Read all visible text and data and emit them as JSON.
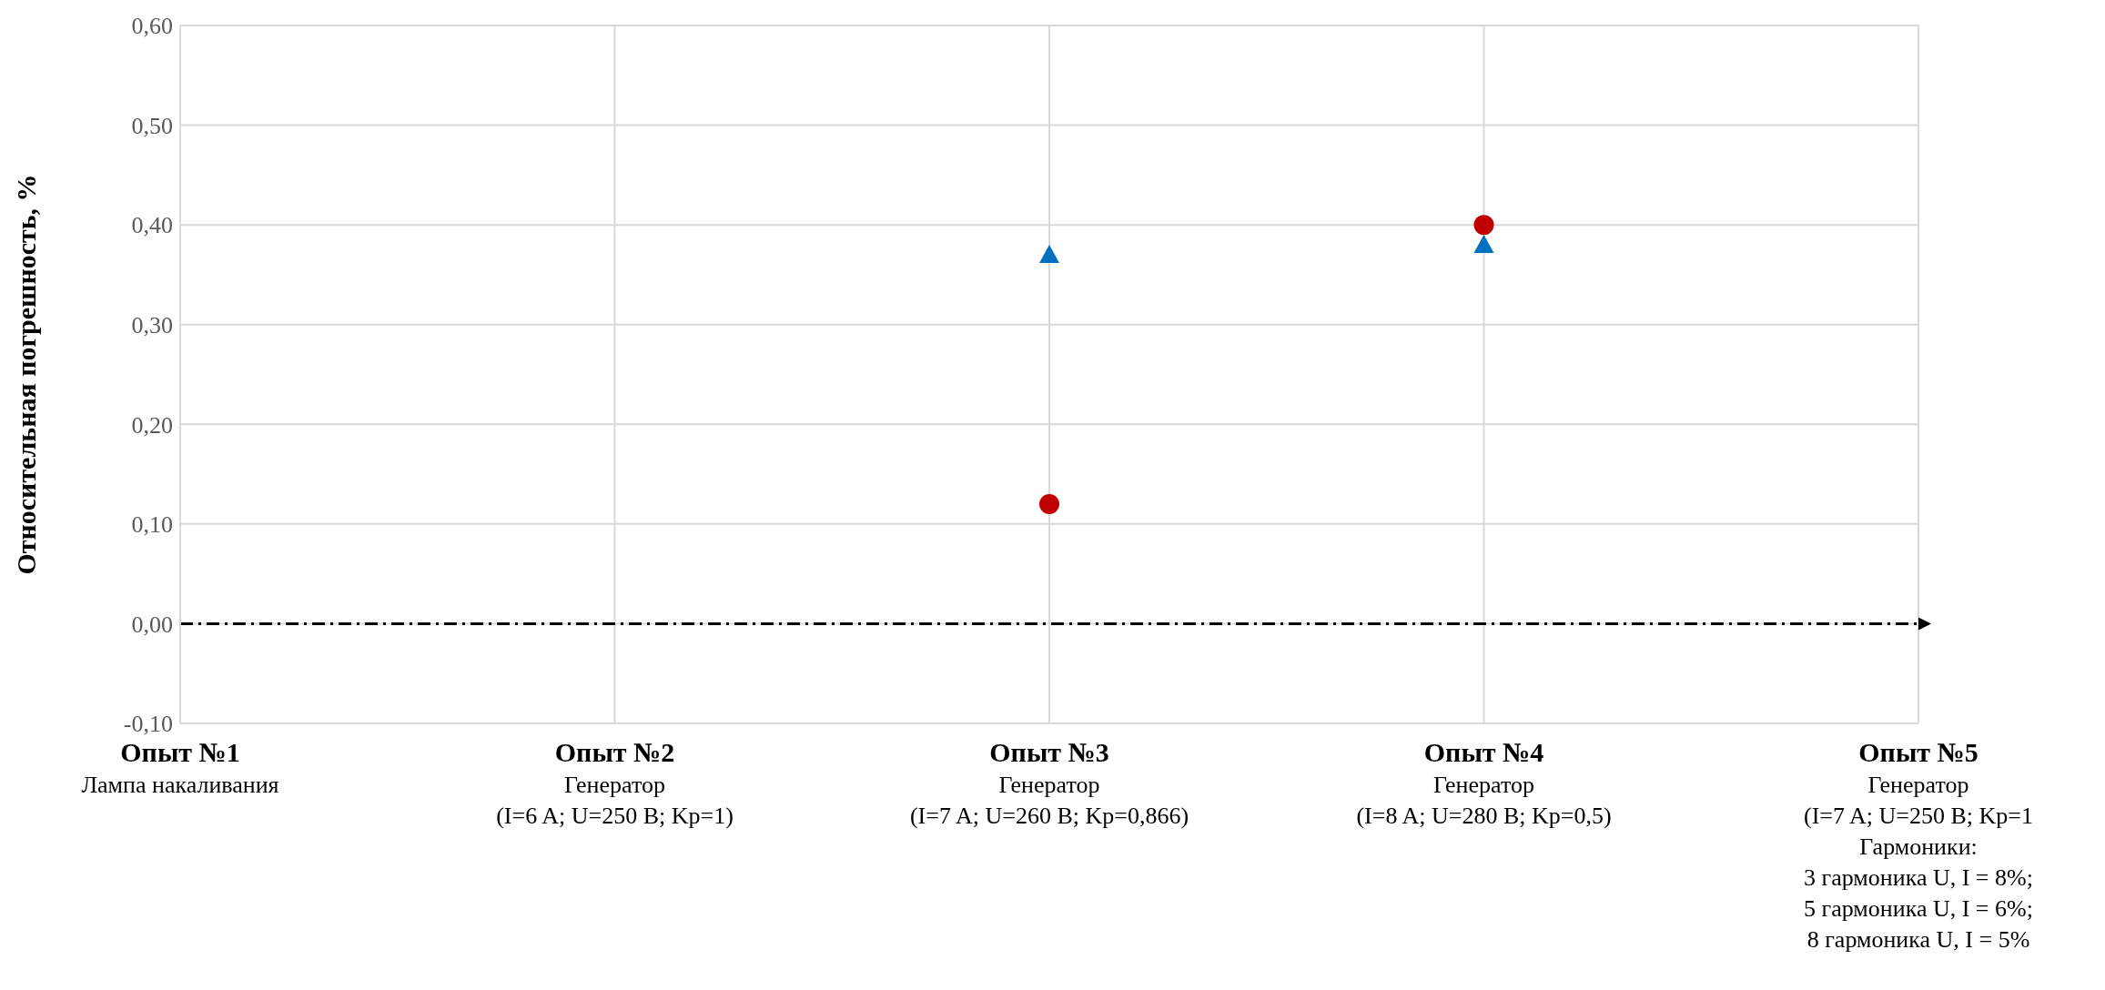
{
  "chart_data": {
    "type": "scatter",
    "ylabel": "Относительная погрешность, %",
    "categories": [
      "Опыт №1\nЛампа накаливания",
      "Опыт №2\nГенератор\n(I=6 A; U=250 B; Kp=1)",
      "Опыт №3\nГенератор\n(I=7 A; U=260 B; Kp=0,866)",
      "Опыт №4\nГенератор\n(I=8 A; U=280 B; Kp=0,5)",
      "Опыт №5\nГенератор\n(I=7 A; U=250 B; Kp=1\nГармоники:\n3 гармоника U, I = 8%;\n5 гармоника U, I = 6%;\n8 гармоника U, I = 5%"
    ],
    "series": [
      {
        "color": "#0070c0",
        "marker": "triangle",
        "values": [
          null,
          null,
          0.37,
          0.38,
          null
        ]
      },
      {
        "color": "#c00000",
        "marker": "circle",
        "values": [
          null,
          null,
          0.12,
          0.4,
          null
        ]
      }
    ],
    "ylim": [
      -0.1,
      0.6
    ],
    "yticks": [
      {
        "value": -0.1,
        "label": "-0,10"
      },
      {
        "value": 0,
        "label": "0,00"
      },
      {
        "value": 0.1,
        "label": "0,10"
      },
      {
        "value": 0.2,
        "label": "0,20"
      },
      {
        "value": 0.3,
        "label": "0,30"
      },
      {
        "value": 0.4,
        "label": "0,40"
      },
      {
        "value": 0.5,
        "label": "0,50"
      },
      {
        "value": 0.6,
        "label": "0,60"
      }
    ],
    "ref_lines": [
      {
        "axis": "y",
        "value": 0,
        "color": "#000000",
        "line_style": "dashed"
      }
    ],
    "grid": true
  }
}
